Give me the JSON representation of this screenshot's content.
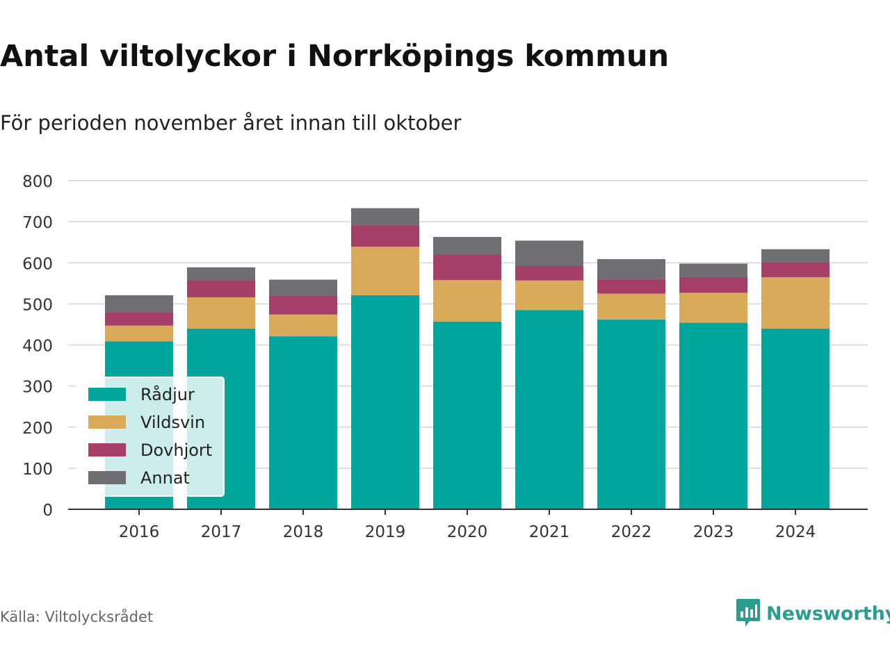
{
  "title": "Antal viltolyckor i Norrköpings kommun",
  "subtitle": "För perioden november året innan till oktober",
  "source": "Källa: Viltolycksrådet",
  "brand": {
    "name": "Newsworthy",
    "icon": "newsworthy-logo-icon",
    "color": "#2a9d8f"
  },
  "chart_data": {
    "type": "bar",
    "stacked": true,
    "categories": [
      "2016",
      "2017",
      "2018",
      "2019",
      "2020",
      "2021",
      "2022",
      "2023",
      "2024"
    ],
    "series": [
      {
        "name": "Rådjur",
        "color": "#00a59b",
        "values": [
          409,
          440,
          421,
          521,
          457,
          485,
          462,
          454,
          440
        ]
      },
      {
        "name": "Vildsvin",
        "color": "#d9aa59",
        "values": [
          38,
          76,
          53,
          118,
          101,
          72,
          63,
          73,
          125
        ]
      },
      {
        "name": "Dovhjort",
        "color": "#a53f67",
        "values": [
          33,
          42,
          46,
          52,
          62,
          35,
          35,
          38,
          36
        ]
      },
      {
        "name": "Annat",
        "color": "#6e6e73",
        "values": [
          41,
          31,
          39,
          42,
          43,
          62,
          49,
          33,
          32
        ]
      }
    ],
    "y_ticks": [
      0,
      100,
      200,
      300,
      400,
      500,
      600,
      700,
      800
    ],
    "ylim": [
      0,
      800
    ],
    "grid": true,
    "legend_position": "bottom-left"
  }
}
